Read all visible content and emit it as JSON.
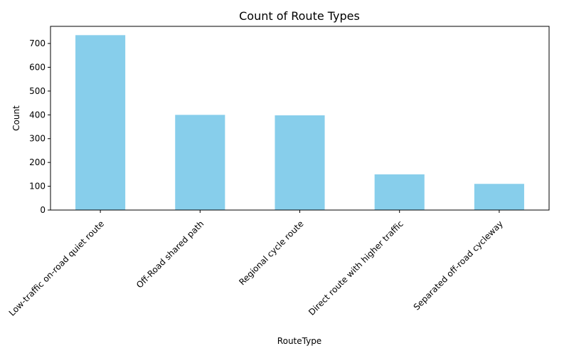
{
  "chart_data": {
    "type": "bar",
    "title": "Count of Route Types",
    "xlabel": "RouteType",
    "ylabel": "Count",
    "categories": [
      "Low-traffic on-road quiet route",
      "Off-Road shared path",
      "Regional cycle route",
      "Direct route with higher traffic",
      "Separated off-road cycleway"
    ],
    "values": [
      735,
      400,
      398,
      150,
      110
    ],
    "yticks": [
      "0",
      "100",
      "200",
      "300",
      "400",
      "500",
      "600",
      "700"
    ],
    "ylim": [
      0,
      772
    ],
    "grid": false,
    "legend": "none",
    "bar_color": "#87ceeb"
  }
}
